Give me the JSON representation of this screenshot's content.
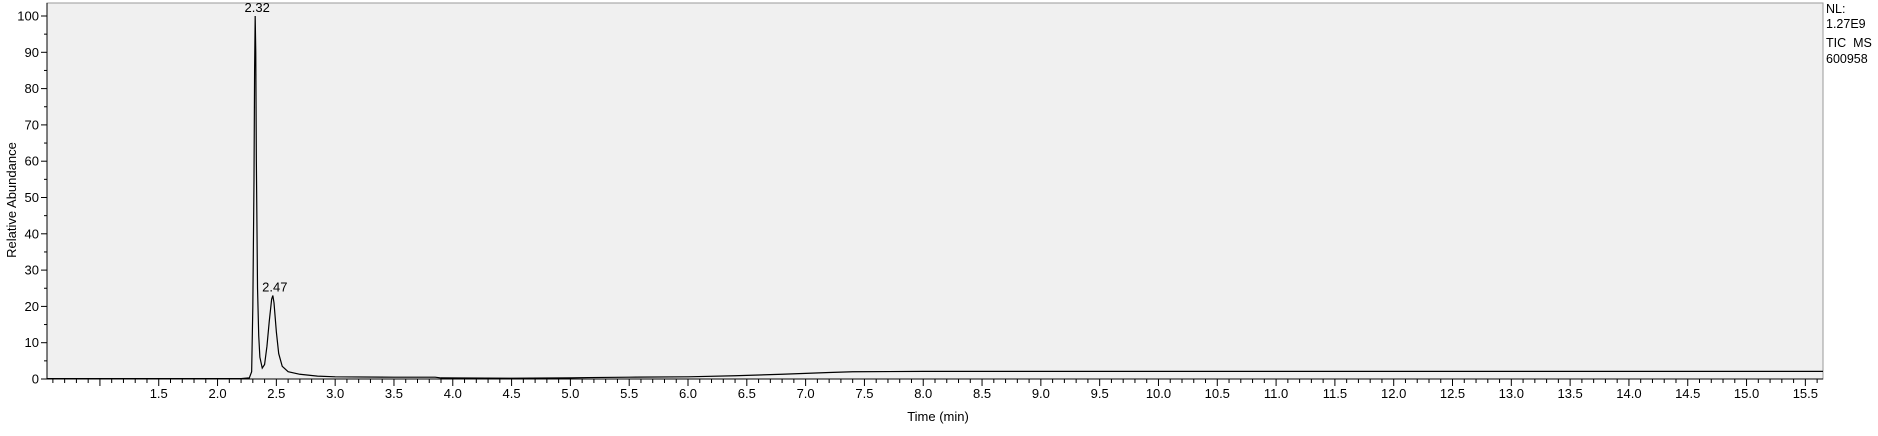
{
  "chart_data": {
    "type": "line",
    "xlabel": "Time (min)",
    "ylabel": "Relative Abundance",
    "xlim": [
      0.55,
      15.65
    ],
    "ylim": [
      0,
      100
    ],
    "x_ticks": [
      "1.5",
      "2.0",
      "2.5",
      "3.0",
      "3.5",
      "4.0",
      "4.5",
      "5.0",
      "5.5",
      "6.0",
      "6.5",
      "7.0",
      "7.5",
      "8.0",
      "8.5",
      "9.0",
      "9.5",
      "10.0",
      "10.5",
      "11.0",
      "11.5",
      "12.0",
      "12.5",
      "13.0",
      "13.5",
      "14.0",
      "14.5",
      "15.0",
      "15.5"
    ],
    "y_ticks": [
      "0",
      "10",
      "20",
      "30",
      "40",
      "50",
      "60",
      "70",
      "80",
      "90",
      "100"
    ],
    "grid": false,
    "peak_labels": [
      {
        "x": 2.32,
        "y": 100,
        "text": "2.32"
      },
      {
        "x": 2.47,
        "y": 23,
        "text": "2.47"
      }
    ],
    "info_lines": [
      "NL:",
      "1.27E9",
      "TIC  MS",
      "600958"
    ],
    "series": [
      {
        "color": "#000000",
        "points": [
          [
            0.55,
            0.1
          ],
          [
            1.5,
            0.1
          ],
          [
            2.2,
            0.1
          ],
          [
            2.27,
            0.3
          ],
          [
            2.29,
            2
          ],
          [
            2.3,
            20
          ],
          [
            2.31,
            55
          ],
          [
            2.315,
            85
          ],
          [
            2.32,
            100
          ],
          [
            2.325,
            90
          ],
          [
            2.33,
            60
          ],
          [
            2.34,
            25
          ],
          [
            2.35,
            12
          ],
          [
            2.36,
            6
          ],
          [
            2.38,
            3
          ],
          [
            2.4,
            4
          ],
          [
            2.42,
            9
          ],
          [
            2.44,
            16
          ],
          [
            2.46,
            22
          ],
          [
            2.47,
            23
          ],
          [
            2.48,
            21
          ],
          [
            2.5,
            13
          ],
          [
            2.52,
            7
          ],
          [
            2.55,
            3.5
          ],
          [
            2.6,
            2
          ],
          [
            2.7,
            1.3
          ],
          [
            2.85,
            0.8
          ],
          [
            3.0,
            0.6
          ],
          [
            3.5,
            0.5
          ],
          [
            3.85,
            0.5
          ],
          [
            3.9,
            0.3
          ],
          [
            4.5,
            0.2
          ],
          [
            5.0,
            0.3
          ],
          [
            5.15,
            0.4
          ],
          [
            5.5,
            0.5
          ],
          [
            6.0,
            0.6
          ],
          [
            6.4,
            0.9
          ],
          [
            6.8,
            1.3
          ],
          [
            7.2,
            1.8
          ],
          [
            7.4,
            2.0
          ],
          [
            8.0,
            2.1
          ],
          [
            10.0,
            2.1
          ],
          [
            12.0,
            2.1
          ],
          [
            14.0,
            2.1
          ],
          [
            15.65,
            2.1
          ]
        ]
      }
    ]
  },
  "colors": {
    "background": "#ffffff",
    "plot_area": "#f0f0f0",
    "line": "#000000",
    "frame": "#7f7f7f"
  }
}
